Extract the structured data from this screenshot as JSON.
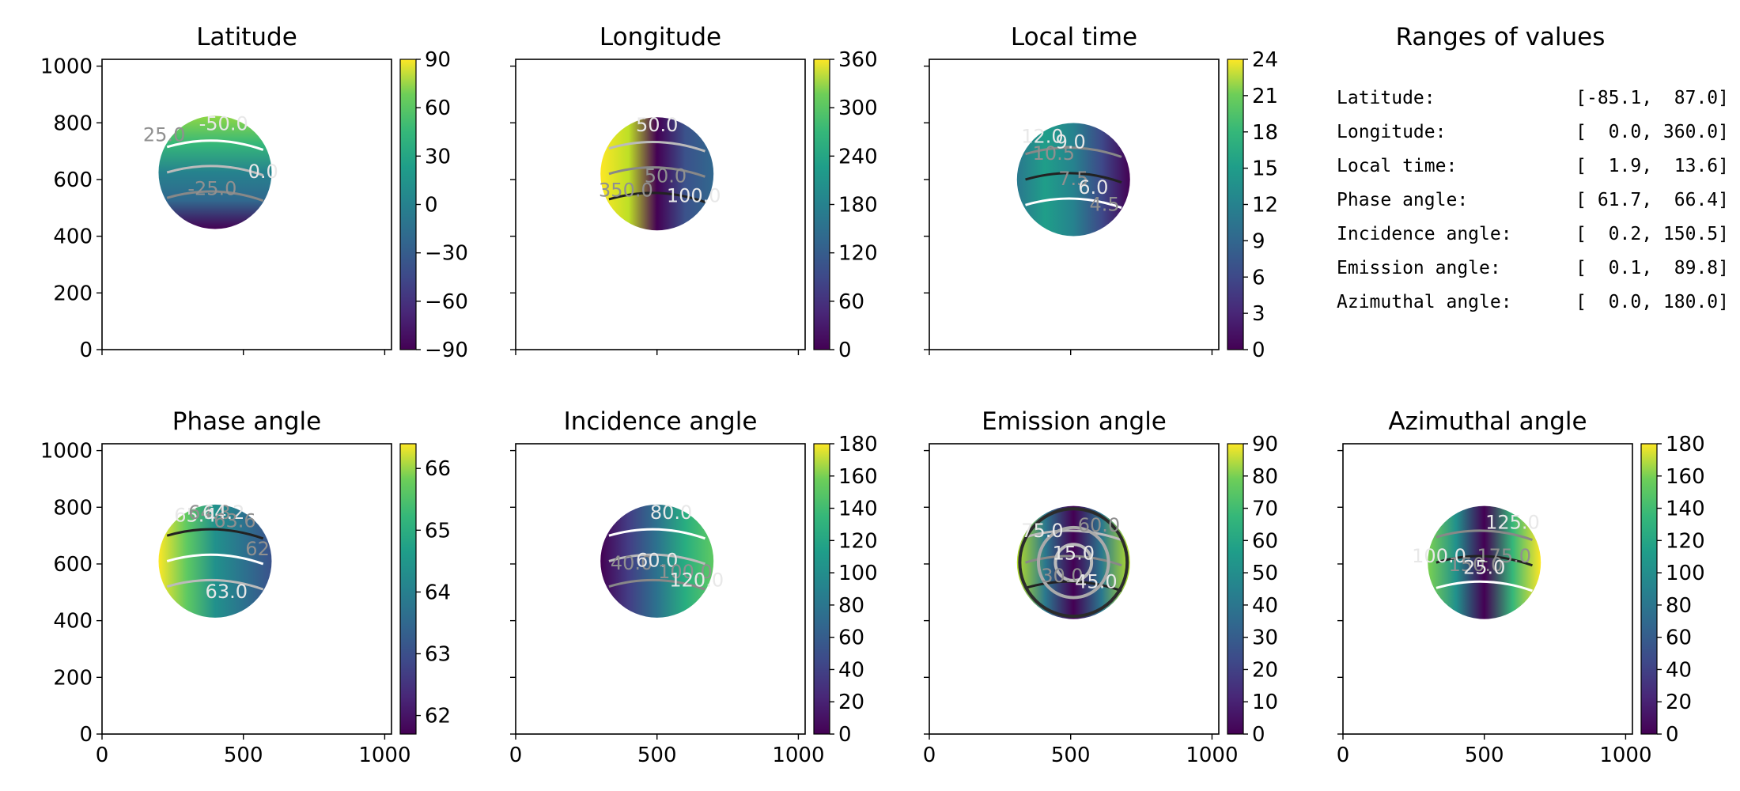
{
  "figure": {
    "ranges_title": "Ranges of values",
    "ranges": [
      {
        "label": "Latitude:",
        "value": "[-85.1,  87.0]"
      },
      {
        "label": "Longitude:",
        "value": "[  0.0, 360.0]"
      },
      {
        "label": "Local time:",
        "value": "[  1.9,  13.6]"
      },
      {
        "label": "Phase angle:",
        "value": "[ 61.7,  66.4]"
      },
      {
        "label": "Incidence angle:",
        "value": "[  0.2, 150.5]"
      },
      {
        "label": "Emission angle:",
        "value": "[  0.1,  89.8]"
      },
      {
        "label": "Azimuthal angle:",
        "value": "[  0.0, 180.0]"
      }
    ]
  },
  "chart_data": [
    {
      "type": "heatmap",
      "title": "Latitude",
      "colormap": "viridis",
      "xlim": [
        0,
        1024
      ],
      "ylim": [
        0,
        1024
      ],
      "x_ticks": [],
      "y_ticks": [
        "0",
        "200",
        "400",
        "600",
        "800",
        "1000"
      ],
      "colorbar": {
        "range": [
          -90,
          90
        ],
        "ticks": [
          "90",
          "60",
          "30",
          "0",
          "−30",
          "−60",
          "−90"
        ]
      },
      "disk": {
        "center": [
          400,
          625
        ],
        "radius": 200
      },
      "contour_labels": [
        "-50.0",
        "25.0",
        "0.0",
        "-25.0"
      ]
    },
    {
      "type": "heatmap",
      "title": "Longitude",
      "colormap": "viridis",
      "xlim": [
        0,
        1024
      ],
      "ylim": [
        0,
        1024
      ],
      "x_ticks": [],
      "y_ticks": [],
      "colorbar": {
        "range": [
          0,
          360
        ],
        "ticks": [
          "360",
          "300",
          "240",
          "180",
          "120",
          "60",
          "0"
        ]
      },
      "disk": {
        "center": [
          500,
          620
        ],
        "radius": 200
      },
      "contour_labels": [
        "50.0",
        "350.0",
        "100.0",
        "50.0"
      ]
    },
    {
      "type": "heatmap",
      "title": "Local time",
      "colormap": "viridis",
      "xlim": [
        0,
        1024
      ],
      "ylim": [
        0,
        1024
      ],
      "x_ticks": [],
      "y_ticks": [],
      "colorbar": {
        "range": [
          0,
          24
        ],
        "ticks": [
          "24",
          "21",
          "18",
          "15",
          "12",
          "9",
          "6",
          "3",
          "0"
        ]
      },
      "disk": {
        "center": [
          510,
          600
        ],
        "radius": 200
      },
      "contour_labels": [
        "12.0",
        "10.5",
        "9.0",
        "7.5",
        "6.0",
        "4.5"
      ]
    },
    {
      "type": "heatmap",
      "title": "Phase angle",
      "colormap": "viridis",
      "xlim": [
        0,
        1024
      ],
      "ylim": [
        0,
        1024
      ],
      "x_ticks": [
        "0",
        "500",
        "1000"
      ],
      "y_ticks": [
        "0",
        "200",
        "400",
        "600",
        "800",
        "1000"
      ],
      "colorbar": {
        "range": [
          61.7,
          66.4
        ],
        "ticks": [
          "66",
          "65",
          "64",
          "63",
          "62"
        ]
      },
      "disk": {
        "center": [
          400,
          610
        ],
        "radius": 200
      },
      "contour_labels": [
        "65.4",
        "64.8",
        "64.2",
        "63.6",
        "63.0",
        "62"
      ]
    },
    {
      "type": "heatmap",
      "title": "Incidence angle",
      "colormap": "viridis",
      "xlim": [
        0,
        1024
      ],
      "ylim": [
        0,
        1024
      ],
      "x_ticks": [
        "0",
        "500",
        "1000"
      ],
      "y_ticks": [],
      "colorbar": {
        "range": [
          0,
          180
        ],
        "ticks": [
          "180",
          "160",
          "140",
          "120",
          "100",
          "80",
          "60",
          "40",
          "20",
          "0"
        ]
      },
      "disk": {
        "center": [
          500,
          610
        ],
        "radius": 200
      },
      "contour_labels": [
        "80.0",
        "40.0",
        "60.0",
        "100.0",
        "120.0"
      ]
    },
    {
      "type": "heatmap",
      "title": "Emission angle",
      "colormap": "viridis",
      "xlim": [
        0,
        1024
      ],
      "ylim": [
        0,
        1024
      ],
      "x_ticks": [
        "0",
        "500",
        "1000"
      ],
      "y_ticks": [],
      "colorbar": {
        "range": [
          0,
          90
        ],
        "ticks": [
          "90",
          "80",
          "70",
          "60",
          "50",
          "40",
          "30",
          "20",
          "10",
          "0"
        ]
      },
      "disk": {
        "center": [
          510,
          605
        ],
        "radius": 200
      },
      "contour_labels": [
        "75.0",
        "60.0",
        "15.0",
        "30.0",
        "45.0"
      ]
    },
    {
      "type": "heatmap",
      "title": "Azimuthal angle",
      "colormap": "viridis",
      "xlim": [
        0,
        1024
      ],
      "ylim": [
        0,
        1024
      ],
      "x_ticks": [
        "0",
        "500",
        "1000"
      ],
      "y_ticks": [],
      "colorbar": {
        "range": [
          0,
          180
        ],
        "ticks": [
          "180",
          "160",
          "140",
          "120",
          "100",
          "80",
          "60",
          "40",
          "20",
          "0"
        ]
      },
      "disk": {
        "center": [
          500,
          605
        ],
        "radius": 200
      },
      "contour_labels": [
        "125.0",
        "175.0",
        "100.0",
        "150.0",
        "25.0"
      ]
    }
  ]
}
